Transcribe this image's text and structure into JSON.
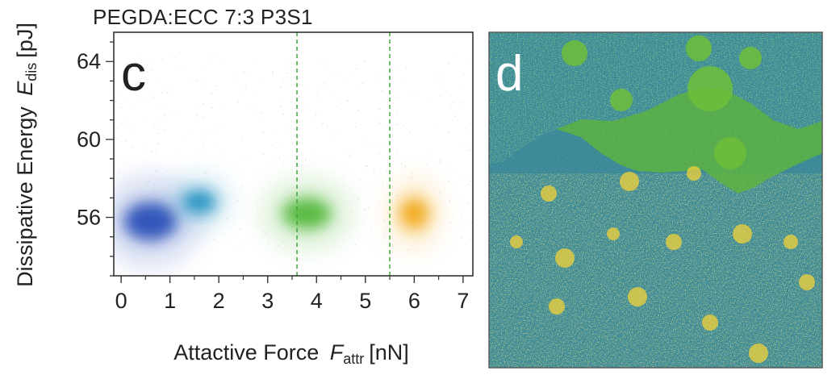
{
  "figure_title": "PEGDA:ECC 7:3 P3S1",
  "chart_data": [
    {
      "type": "scatter",
      "panel_label": "c",
      "xlabel": "Attactive Force",
      "xlabel_symbol": "F",
      "xlabel_subscript": "attr",
      "xlabel_unit": "[nN]",
      "ylabel": "Dissipative Energy",
      "ylabel_symbol": "E",
      "ylabel_subscript": "dis",
      "ylabel_unit": "[pJ]",
      "xlim": [
        -0.15,
        7.2
      ],
      "ylim": [
        53,
        65.5
      ],
      "xticks": [
        0,
        1,
        2,
        3,
        4,
        5,
        6,
        7
      ],
      "yticks": [
        56,
        60,
        64
      ],
      "y_minor_step": 1,
      "grid": false,
      "legend": "none",
      "vertical_reference_lines": {
        "x": [
          3.6,
          5.5
        ],
        "color": "#3aa83a",
        "style": "dashed"
      },
      "clusters": [
        {
          "x_center": 0.6,
          "y_center": 55.8,
          "x_spread": 0.55,
          "y_spread": 1.0,
          "color": "#2a4fb8"
        },
        {
          "x_center": 1.6,
          "y_center": 56.8,
          "x_spread": 0.35,
          "y_spread": 0.6,
          "color": "#1f8fc0"
        },
        {
          "x_center": 3.8,
          "y_center": 56.2,
          "x_spread": 0.5,
          "y_spread": 0.8,
          "color": "#52b83a"
        },
        {
          "x_center": 6.0,
          "y_center": 56.2,
          "x_spread": 0.3,
          "y_spread": 0.8,
          "color": "#f2a818"
        }
      ]
    },
    {
      "type": "heatmap",
      "panel_label": "d",
      "description_colors": {
        "background_blue": "#1f5f9c",
        "teal": "#3f9a8a",
        "green": "#6fbe3a",
        "yellow": "#f1d23a"
      }
    }
  ]
}
